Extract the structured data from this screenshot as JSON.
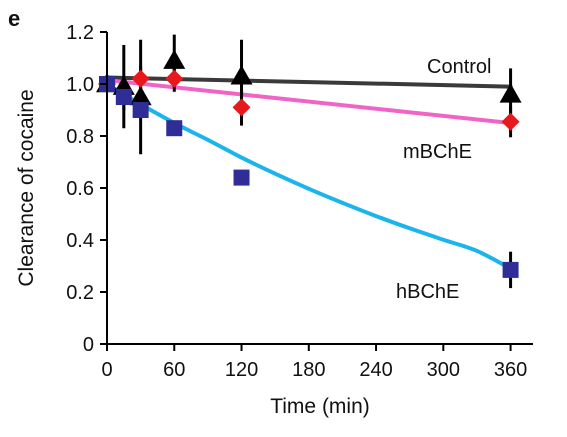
{
  "panel_label": "e",
  "chart_data": {
    "type": "scatter",
    "xlabel": "Time (min)",
    "ylabel": "Clearance of cocaine",
    "xlim": [
      0,
      380
    ],
    "ylim": [
      0,
      1.2
    ],
    "xticks": [
      0,
      60,
      120,
      180,
      240,
      300,
      360
    ],
    "yticks": [
      0,
      0.2,
      0.4,
      0.6,
      0.8,
      1.0,
      1.2
    ],
    "ytick_labels": [
      "0",
      "0.2",
      "0.4",
      "0.6",
      "0.8",
      "1.0",
      "1.2"
    ],
    "grid": false,
    "series": [
      {
        "name": "Control",
        "marker": "triangle",
        "marker_color": "#000000",
        "line_color": "#3a3a3a",
        "x": [
          0,
          15,
          30,
          60,
          120,
          360
        ],
        "y": [
          1.0,
          0.99,
          0.95,
          1.09,
          1.03,
          0.96
        ],
        "err": [
          0.03,
          0.16,
          0.22,
          0.1,
          0.14,
          0.1
        ],
        "fit_x": [
          0,
          360
        ],
        "fit_y": [
          1.025,
          0.99
        ]
      },
      {
        "name": "mBChE",
        "marker": "diamond",
        "marker_color": "#e8191c",
        "line_color": "#f064c8",
        "x": [
          0,
          30,
          60,
          120,
          360
        ],
        "y": [
          1.0,
          1.02,
          1.02,
          0.91,
          0.855
        ],
        "err": [
          0.03,
          0.05,
          0.05,
          0.07,
          0.06
        ],
        "fit_x": [
          0,
          360
        ],
        "fit_y": [
          1.015,
          0.85
        ]
      },
      {
        "name": "hBChE",
        "marker": "square",
        "marker_color": "#2e2e96",
        "line_color": "#1cb4ec",
        "x": [
          0,
          15,
          30,
          60,
          120,
          360
        ],
        "y": [
          1.0,
          0.95,
          0.9,
          0.83,
          0.64,
          0.285
        ],
        "err": [
          0.03,
          0.05,
          0.03,
          0.02,
          0.03,
          0.07
        ],
        "fit_x": [
          0,
          15,
          30,
          60,
          90,
          120,
          150,
          180,
          210,
          240,
          270,
          300,
          330,
          360
        ],
        "fit_y": [
          1.0,
          0.96,
          0.922,
          0.85,
          0.785,
          0.717,
          0.655,
          0.597,
          0.543,
          0.492,
          0.445,
          0.401,
          0.358,
          0.29
        ]
      }
    ]
  }
}
